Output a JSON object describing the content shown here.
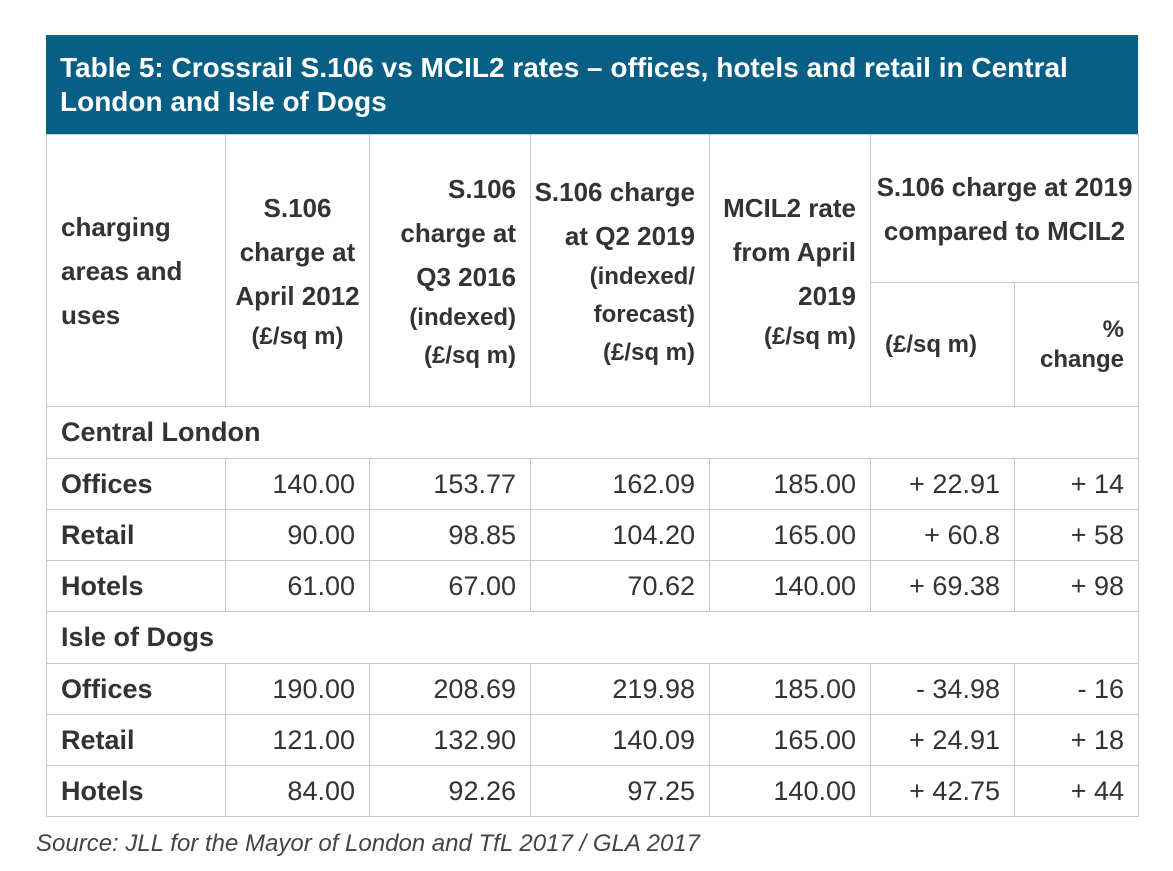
{
  "title": "Table 5: Crossrail S.106 vs MCIL2 rates – offices, hotels and retail in Central London and Isle of Dogs",
  "header": {
    "col1": "charging areas and uses",
    "col2_label": "S.106 charge at April 2012",
    "col2_unit": "(£/sq m)",
    "col3_label": "S.106 charge at Q3 2016",
    "col3_note": "(indexed)",
    "col3_unit": "(£/sq m)",
    "col4_label": "S.106 charge at Q2 2019",
    "col4_note": "(indexed/ forecast)",
    "col4_unit": "(£/sq m)",
    "col5_label": "MCIL2 rate from April 2019",
    "col5_unit": "(£/sq m)",
    "group_label": "S.106 charge at 2019 compared to MCIL2",
    "sub1": "(£/sq m)",
    "sub2": "% change"
  },
  "sections": [
    {
      "name": "Central London",
      "rows": [
        {
          "use": "Offices",
          "apr2012": "140.00",
          "q3_2016": "153.77",
          "q2_2019": "162.09",
          "mcil2": "185.00",
          "diff": "+ 22.91",
          "pct": "+ 14"
        },
        {
          "use": "Retail",
          "apr2012": "90.00",
          "q3_2016": "98.85",
          "q2_2019": "104.20",
          "mcil2": "165.00",
          "diff": "+ 60.8",
          "pct": "+ 58"
        },
        {
          "use": "Hotels",
          "apr2012": "61.00",
          "q3_2016": "67.00",
          "q2_2019": "70.62",
          "mcil2": "140.00",
          "diff": "+ 69.38",
          "pct": "+ 98"
        }
      ]
    },
    {
      "name": "Isle of Dogs",
      "rows": [
        {
          "use": "Offices",
          "apr2012": "190.00",
          "q3_2016": "208.69",
          "q2_2019": "219.98",
          "mcil2": "185.00",
          "diff": "- 34.98",
          "pct": "- 16"
        },
        {
          "use": "Retail",
          "apr2012": "121.00",
          "q3_2016": "132.90",
          "q2_2019": "140.09",
          "mcil2": "165.00",
          "diff": "+ 24.91",
          "pct": "+ 18"
        },
        {
          "use": "Hotels",
          "apr2012": "84.00",
          "q3_2016": "92.26",
          "q2_2019": "97.25",
          "mcil2": "140.00",
          "diff": "+ 42.75",
          "pct": "+ 44"
        }
      ]
    }
  ],
  "source": "Source: JLL for the Mayor of London and TfL 2017 / GLA 2017",
  "colors": {
    "title_bg": "#075f86",
    "title_text": "#ffffff",
    "border": "#c9c9c9",
    "text": "#333333"
  }
}
